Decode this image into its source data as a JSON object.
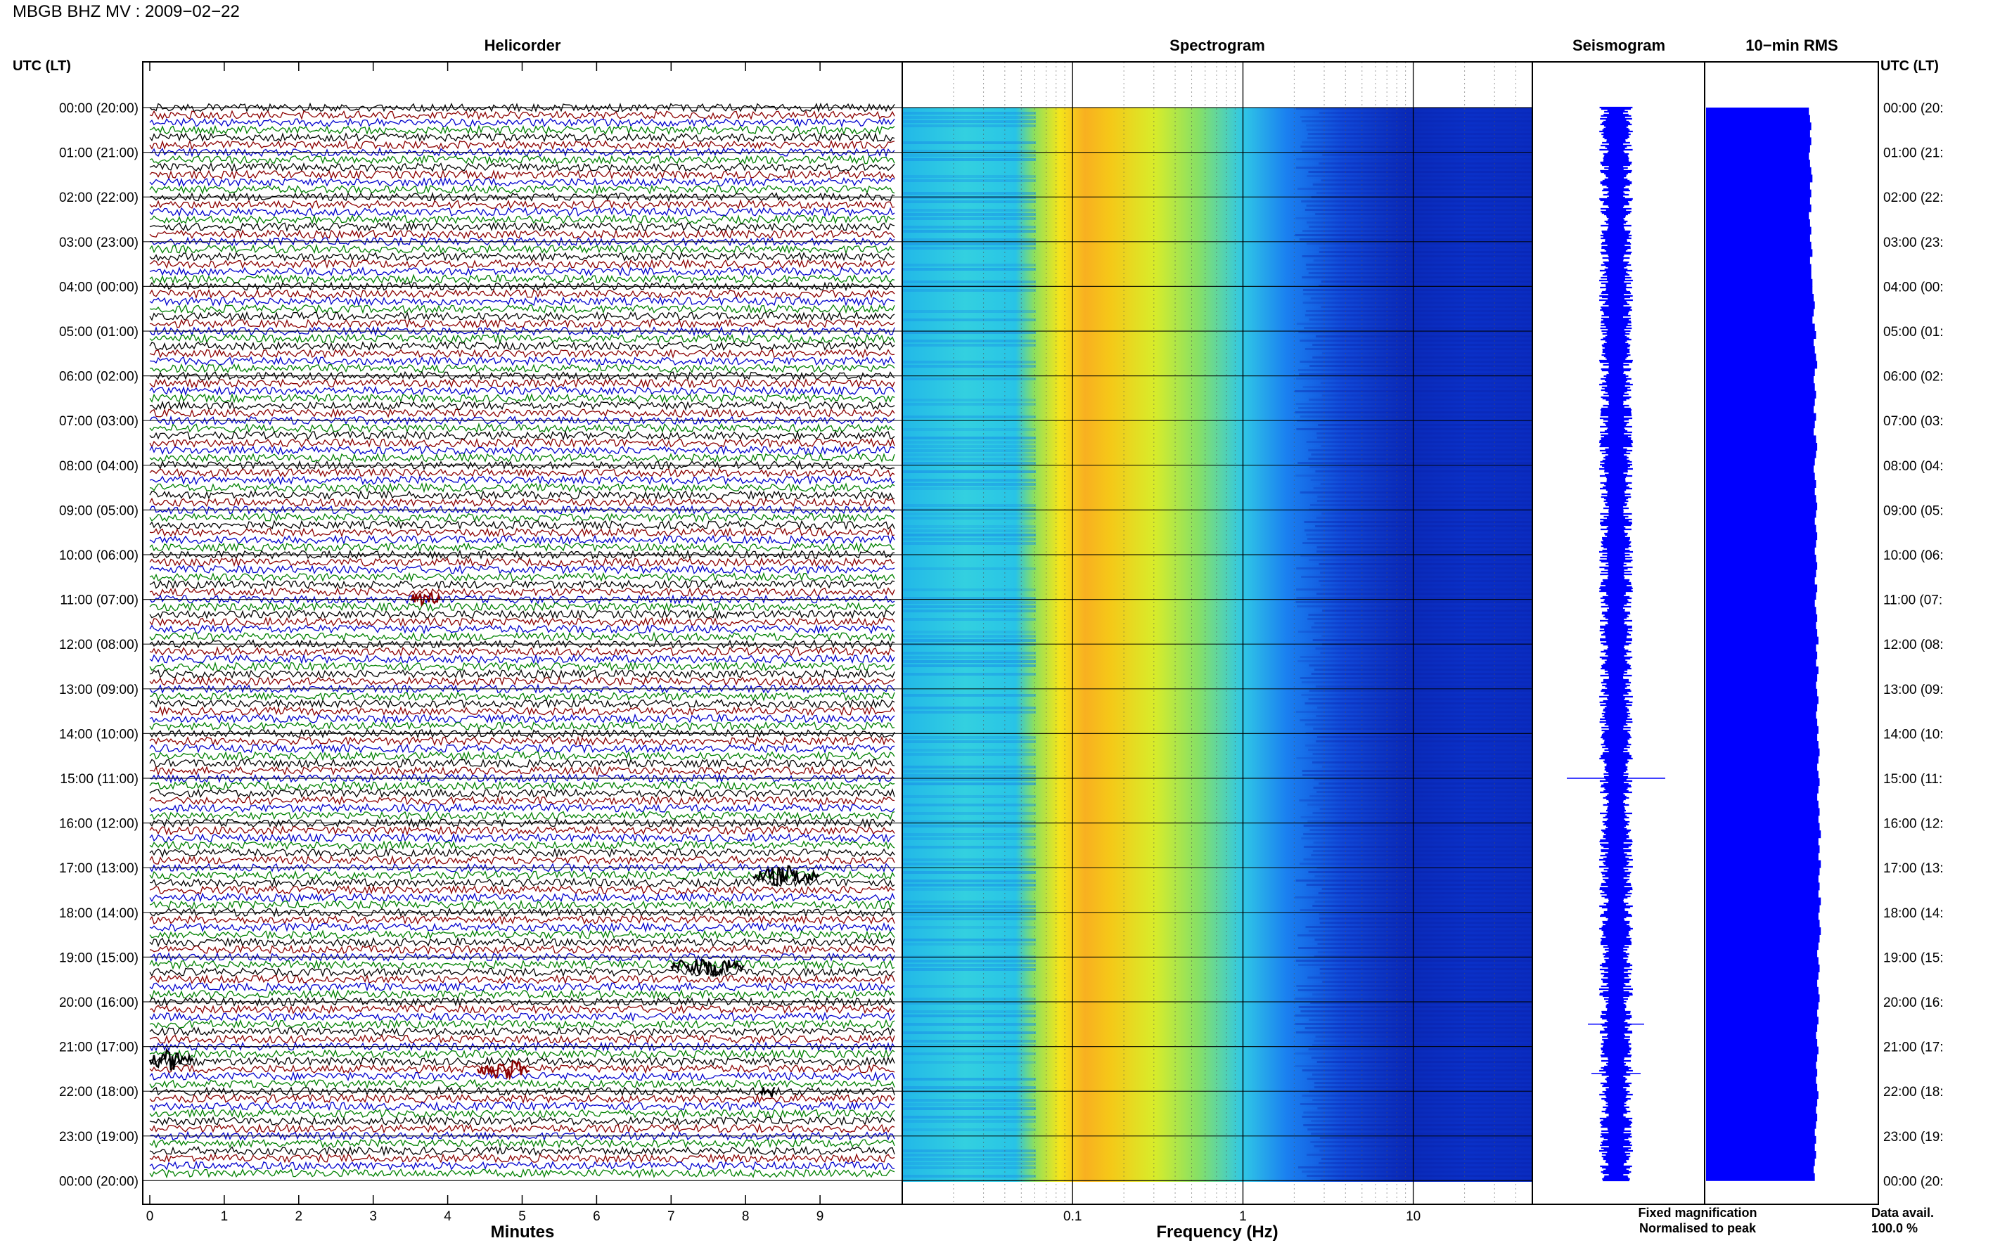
{
  "header": {
    "title": "MBGB BHZ MV : 2009−02−22"
  },
  "panels": {
    "helicorder": "Helicorder",
    "spectrogram": "Spectrogram",
    "seismogram": "Seismogram",
    "rms": "10−min RMS"
  },
  "axis_labels": {
    "time_left": "UTC (LT)",
    "time_right": "UTC (LT)",
    "minutes": "Minutes",
    "frequency": "Frequency (Hz)"
  },
  "legend": {
    "fixed": "Fixed magnification",
    "normalised": "Normalised to peak",
    "fixed_color": "#0000ff",
    "normalised_color": "#ff0000"
  },
  "data_avail": {
    "label": "Data avail.",
    "value": "100.0 %"
  },
  "colors": {
    "trace_cycle": [
      "#000000",
      "#8b0000",
      "#0000cd",
      "#008000"
    ],
    "rms_bar": "#0000ff",
    "seismogram": "#0000ff"
  },
  "chart_data": [
    {
      "type": "line",
      "title": "Helicorder",
      "xlabel": "Minutes",
      "ylabel": "UTC (LT)",
      "x_ticks": [
        "0",
        "1",
        "2",
        "3",
        "4",
        "5",
        "6",
        "7",
        "8",
        "9"
      ],
      "x_range": [
        0,
        10
      ],
      "rows_per_hour": 6,
      "hours": 24,
      "events": [
        {
          "hour": 11.0,
          "minute_start": 3.5,
          "minute_end": 3.9,
          "color": "#8b0000"
        },
        {
          "hour": 17.2,
          "minute_start": 8.1,
          "minute_end": 9.0,
          "color": "#000000"
        },
        {
          "hour": 19.2,
          "minute_start": 7.0,
          "minute_end": 8.0,
          "color": "#000000"
        },
        {
          "hour": 21.3,
          "minute_start": 0.0,
          "minute_end": 0.6,
          "color": "#000000"
        },
        {
          "hour": 21.5,
          "minute_start": 4.4,
          "minute_end": 5.1,
          "color": "#8b0000"
        },
        {
          "hour": 22.0,
          "minute_start": 8.2,
          "minute_end": 8.4,
          "color": "#000000"
        }
      ]
    },
    {
      "type": "heatmap",
      "title": "Spectrogram",
      "xlabel": "Frequency (Hz)",
      "x_scale": "log",
      "x_range": [
        0.01,
        50
      ],
      "x_ticks": [
        "0.1",
        "1",
        "10"
      ],
      "colormap": "jet",
      "peak_band_hz": [
        0.2,
        0.5
      ]
    },
    {
      "type": "line",
      "title": "Seismogram",
      "legend": [
        "Fixed magnification",
        "Normalised to peak"
      ]
    },
    {
      "type": "bar",
      "title": "10−min RMS",
      "orientation": "horizontal",
      "n_bars": 144,
      "relative_values": [
        0.86,
        0.87,
        0.88,
        0.87,
        0.88,
        0.87,
        0.86,
        0.87,
        0.88,
        0.89,
        0.87,
        0.88,
        0.87,
        0.88,
        0.86,
        0.87,
        0.88,
        0.87,
        0.88,
        0.89,
        0.87,
        0.88,
        0.88,
        0.89,
        0.89,
        0.9,
        0.91,
        0.9,
        0.89,
        0.91,
        0.92,
        0.9,
        0.91,
        0.92,
        0.93,
        0.91,
        0.9,
        0.91,
        0.92,
        0.91,
        0.9,
        0.92,
        0.91,
        0.9,
        0.92,
        0.93,
        0.92,
        0.91,
        0.9,
        0.91,
        0.92,
        0.91,
        0.92,
        0.93,
        0.92,
        0.91,
        0.92,
        0.93,
        0.92,
        0.91,
        0.92,
        0.93,
        0.92,
        0.91,
        0.93,
        0.92,
        0.91,
        0.92,
        0.93,
        0.92,
        0.93,
        0.94,
        0.92,
        0.93,
        0.92,
        0.94,
        0.93,
        0.92,
        0.93,
        0.94,
        0.93,
        0.92,
        0.93,
        0.94,
        0.93,
        0.94,
        0.95,
        0.94,
        0.93,
        0.94,
        0.95,
        0.94,
        0.93,
        0.94,
        0.95,
        0.94,
        0.95,
        0.96,
        0.94,
        0.95,
        0.94,
        0.96,
        0.95,
        0.94,
        0.95,
        0.94,
        0.96,
        0.95,
        0.94,
        0.95,
        0.96,
        0.95,
        0.94,
        0.93,
        0.94,
        0.95,
        0.94,
        0.93,
        0.94,
        0.95,
        0.94,
        0.93,
        0.94,
        0.93,
        0.92,
        0.93,
        0.94,
        0.93,
        0.92,
        0.93,
        0.92,
        0.93,
        0.94,
        0.93,
        0.92,
        0.93,
        0.92,
        0.91,
        0.92,
        0.91,
        0.92,
        0.91,
        0.9,
        0.91
      ]
    }
  ]
}
